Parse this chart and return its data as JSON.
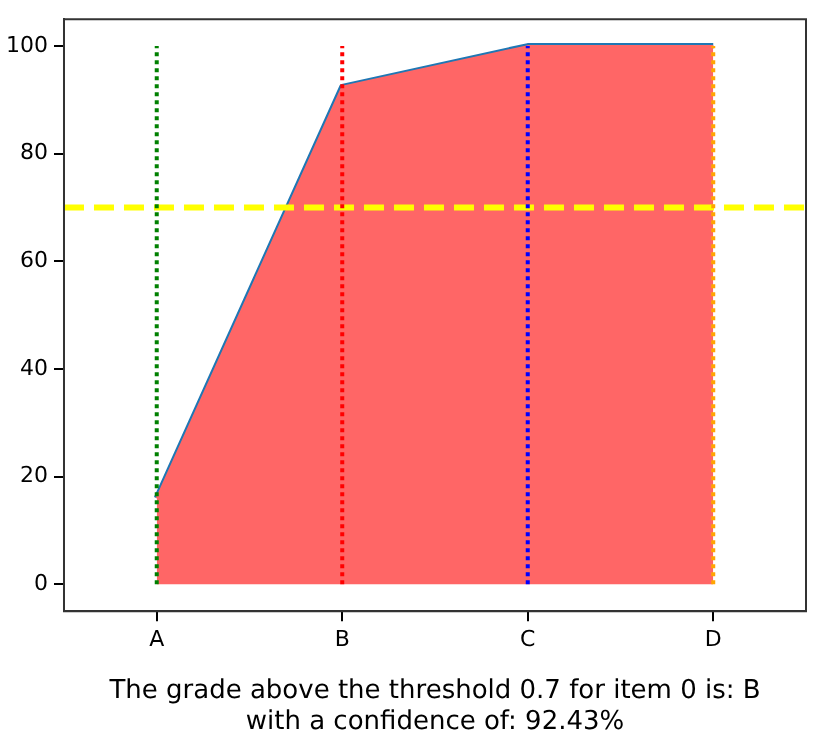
{
  "chart_data": {
    "type": "area",
    "xlabel": "The grade above the threshold 0.7 for item 0 is: B\nwith a confidence of: 92.43%",
    "categories": [
      "A",
      "B",
      "C",
      "D"
    ],
    "series": [
      {
        "type": "area",
        "color": "#ff6666",
        "values": [
          16,
          92.43,
          100,
          100
        ]
      },
      {
        "type": "line",
        "color": "#1f77b4",
        "values": [
          16,
          92.43,
          100,
          100
        ]
      }
    ],
    "ylim": [
      -5,
      105
    ],
    "yticks": [
      0,
      20,
      40,
      60,
      80,
      100
    ],
    "grid": false,
    "legend": false,
    "ref_lines": [
      {
        "axis": "y",
        "value": 70,
        "color": "#ffff00",
        "line_style": "dashed"
      },
      {
        "axis": "x",
        "value": "A",
        "color": "#008000",
        "line_style": "dotted"
      },
      {
        "axis": "x",
        "value": "B",
        "color": "#ff0000",
        "line_style": "dotted"
      },
      {
        "axis": "x",
        "value": "C",
        "color": "#0000ff",
        "line_style": "dotted"
      },
      {
        "axis": "x",
        "value": "D",
        "color": "#ffa500",
        "line_style": "dotted"
      }
    ]
  }
}
